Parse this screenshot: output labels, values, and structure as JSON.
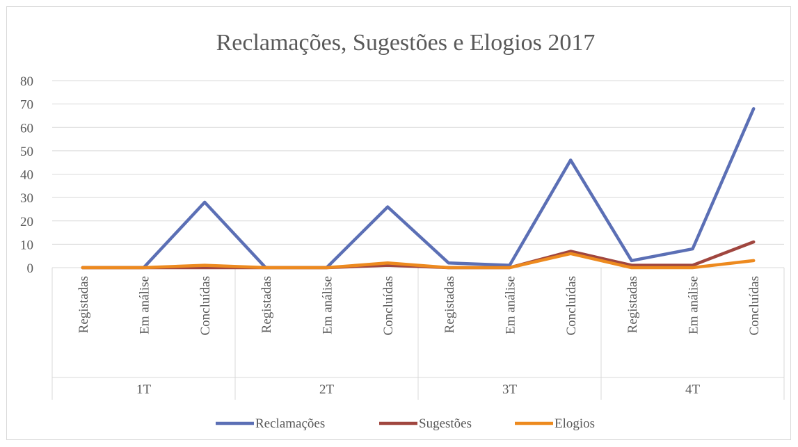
{
  "chart_data": {
    "type": "line",
    "title": "Reclamações, Sugestões e Elogios 2017",
    "xlabel": "",
    "ylabel": "",
    "ylim": [
      0,
      80
    ],
    "yticks": [
      0,
      10,
      20,
      30,
      40,
      50,
      60,
      70,
      80
    ],
    "grid": true,
    "legend_position": "bottom",
    "groups": [
      {
        "label": "1T",
        "categories": [
          "Registadas",
          "Em análise",
          "Concluídas"
        ]
      },
      {
        "label": "2T",
        "categories": [
          "Registadas",
          "Em análise",
          "Concluídas"
        ]
      },
      {
        "label": "3T",
        "categories": [
          "Registadas",
          "Em análise",
          "Concluídas"
        ]
      },
      {
        "label": "4T",
        "categories": [
          "Registadas",
          "Em análise",
          "Concluídas"
        ]
      }
    ],
    "series": [
      {
        "name": "Reclamações",
        "color": "#5b6fb5",
        "values": [
          0,
          0,
          28,
          0,
          0,
          26,
          2,
          1,
          46,
          3,
          8,
          68
        ]
      },
      {
        "name": "Sugestões",
        "color": "#a0463f",
        "values": [
          0,
          0,
          0,
          0,
          0,
          1,
          0,
          0,
          7,
          1,
          1,
          11
        ]
      },
      {
        "name": "Elogios",
        "color": "#ed8a1f",
        "values": [
          0,
          0,
          1,
          0,
          0,
          2,
          0,
          0,
          6,
          0,
          0,
          3
        ]
      }
    ]
  }
}
